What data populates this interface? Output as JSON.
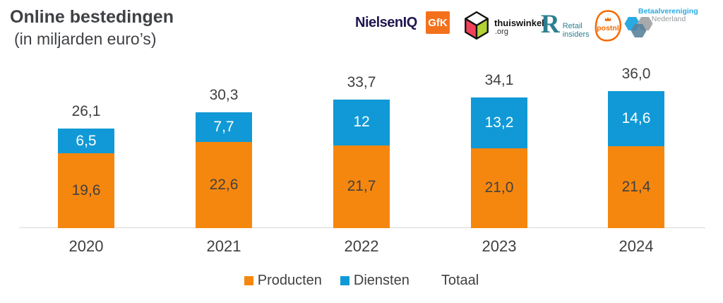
{
  "header": {
    "title": "Online bestedingen",
    "subtitle": "(in miljarden euro’s)",
    "logos": {
      "nielseniq": "NielsenIQ",
      "gfk": "GfK",
      "thuiswinkel_name": "thuiswinkel",
      "thuiswinkel_org": ".org",
      "retail_r": "R",
      "retail_line1": "Retail",
      "retail_line2": "insiders",
      "postnl": "postnl",
      "betaal_line1": "Betaalvereniging",
      "betaal_line2": "Nederland"
    }
  },
  "chart_data": {
    "type": "bar",
    "stacked": true,
    "title": "Online bestedingen",
    "subtitle": "(in miljarden euro’s)",
    "categories": [
      "2020",
      "2021",
      "2022",
      "2023",
      "2024"
    ],
    "series": [
      {
        "name": "Producten",
        "color": "#F6870E",
        "label_color": "#404040",
        "values": [
          19.6,
          22.6,
          21.7,
          21.0,
          21.4
        ],
        "labels": [
          "19,6",
          "22,6",
          "21,7",
          "21,0",
          "21,4"
        ]
      },
      {
        "name": "Diensten",
        "color": "#1099D6",
        "label_color": "#FFFFFF",
        "values": [
          6.5,
          7.7,
          12,
          13.2,
          14.6
        ],
        "labels": [
          "6,5",
          "7,7",
          "12",
          "13,2",
          "14,6"
        ]
      }
    ],
    "totals": {
      "name": "Totaal",
      "values": [
        26.1,
        30.3,
        33.7,
        34.1,
        36.0
      ],
      "labels": [
        "26,1",
        "30,3",
        "33,7",
        "34,1",
        "36,0"
      ]
    },
    "legend": [
      {
        "label": "Producten",
        "color": "#F6870E"
      },
      {
        "label": "Diensten",
        "color": "#1099D6"
      },
      {
        "label": "Totaal",
        "color": null
      }
    ],
    "ylim": [
      0,
      36
    ],
    "grid": false,
    "legend_position": "bottom",
    "xlabel": "",
    "ylabel": ""
  },
  "colors": {
    "text_dark": "#404040",
    "axis_line": "#D9D9D9",
    "producten": "#F6870E",
    "diensten": "#1099D6"
  }
}
